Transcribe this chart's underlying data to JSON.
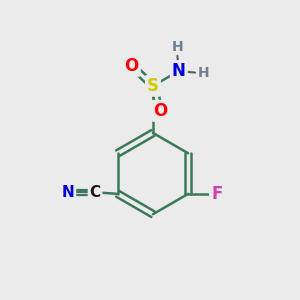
{
  "background_color": "#ebebeb",
  "bond_color": "#3a7a5a",
  "atom_colors": {
    "S": "#cccc00",
    "O": "#ff0000",
    "N": "#0000dd",
    "F": "#cc44aa",
    "C_nitrile": "#1a1a1a",
    "N_nitrile": "#0000dd",
    "H": "#708090"
  },
  "figsize": [
    3.0,
    3.0
  ],
  "dpi": 100
}
